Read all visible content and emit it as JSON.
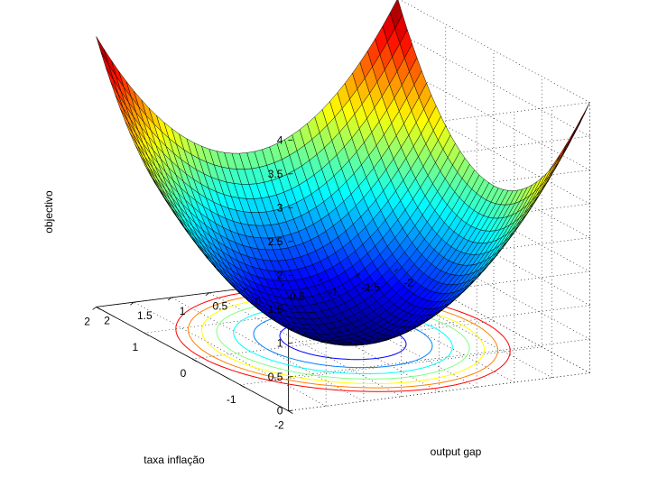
{
  "chart_data": {
    "type": "surface",
    "title": "",
    "xlabel": "output gap",
    "ylabel": "taxa inflação",
    "zlabel": "objectivo",
    "function": "z = (x^2 + y^2) / 2",
    "x": {
      "range": [
        -2,
        2
      ],
      "ticks": [
        -2,
        -1.5,
        -1,
        -0.5,
        0,
        0.5,
        1,
        1.5,
        2
      ],
      "tick_labels": [
        "-2",
        "-1.5",
        "-1",
        "-0.5",
        "0",
        "0.5",
        "1",
        "1.5",
        "2"
      ]
    },
    "y": {
      "range": [
        -2,
        2
      ],
      "ticks": [
        -2,
        -1,
        0,
        1,
        2
      ],
      "tick_labels": [
        "-2",
        "-1",
        "0",
        "1",
        "2"
      ]
    },
    "z": {
      "range": [
        0,
        4
      ],
      "ticks": [
        0,
        0.5,
        1,
        1.5,
        2,
        2.5,
        3,
        3.5,
        4
      ],
      "tick_labels": [
        "0",
        "0.5",
        "1",
        "1.5",
        "2",
        "2.5",
        "3",
        "3.5",
        "4"
      ]
    },
    "grid_points": 41,
    "contour_levels": [
      0.25,
      0.5,
      0.75,
      1.0,
      1.25,
      1.5,
      1.75
    ],
    "colormap": "jet",
    "grid": true,
    "legend": "none"
  }
}
